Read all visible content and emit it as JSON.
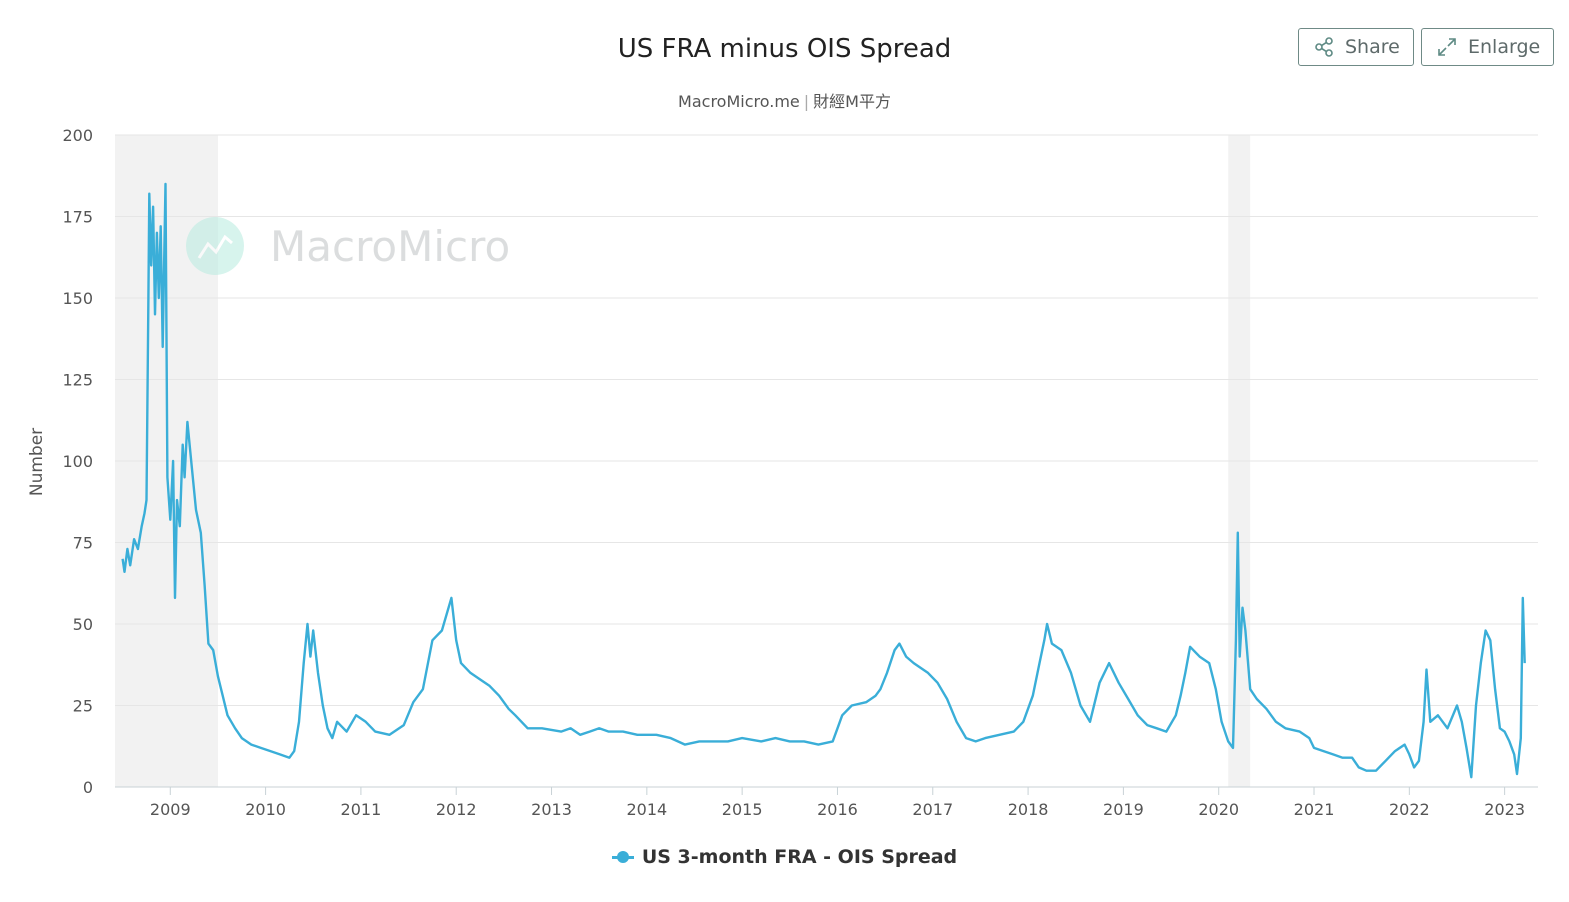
{
  "toolbar": {
    "share_label": "Share",
    "enlarge_label": "Enlarge",
    "share_icon": "share-icon",
    "enlarge_icon": "expand-icon"
  },
  "watermark": {
    "text": "MacroMicro",
    "logo_icon": "macromicro-logo-icon"
  },
  "chart_data": {
    "type": "line",
    "title": "US FRA minus OIS Spread",
    "subtitle": "MacroMicro.me | 財經M平方",
    "subtitle_source": "MacroMicro.me",
    "subtitle_brand": "財經M平方",
    "xlabel": "",
    "ylabel": "Number",
    "ylim": [
      0,
      200
    ],
    "yticks": [
      0,
      25,
      50,
      75,
      100,
      125,
      150,
      175,
      200
    ],
    "xlim": [
      2008.42,
      2023.35
    ],
    "xticks": [
      "2009",
      "2010",
      "2011",
      "2012",
      "2013",
      "2014",
      "2015",
      "2016",
      "2017",
      "2018",
      "2019",
      "2020",
      "2021",
      "2022",
      "2023"
    ],
    "grid": true,
    "legend": "bottom-center",
    "colors": {
      "series": "#3aaed8",
      "recession": "#f2f2f2",
      "grid": "#e6e6e6"
    },
    "recession_bands": [
      [
        2008.42,
        2009.5
      ],
      [
        2020.1,
        2020.33
      ]
    ],
    "series": [
      {
        "name": "US 3-month FRA - OIS Spread",
        "points": [
          [
            2008.5,
            70
          ],
          [
            2008.52,
            66
          ],
          [
            2008.55,
            73
          ],
          [
            2008.58,
            68
          ],
          [
            2008.62,
            76
          ],
          [
            2008.66,
            73
          ],
          [
            2008.7,
            80
          ],
          [
            2008.73,
            84
          ],
          [
            2008.75,
            88
          ],
          [
            2008.77,
            150
          ],
          [
            2008.78,
            182
          ],
          [
            2008.8,
            160
          ],
          [
            2008.82,
            178
          ],
          [
            2008.84,
            145
          ],
          [
            2008.86,
            170
          ],
          [
            2008.88,
            150
          ],
          [
            2008.9,
            172
          ],
          [
            2008.92,
            135
          ],
          [
            2008.95,
            185
          ],
          [
            2008.97,
            95
          ],
          [
            2009.0,
            82
          ],
          [
            2009.03,
            100
          ],
          [
            2009.05,
            58
          ],
          [
            2009.07,
            88
          ],
          [
            2009.1,
            80
          ],
          [
            2009.13,
            105
          ],
          [
            2009.15,
            95
          ],
          [
            2009.18,
            112
          ],
          [
            2009.22,
            100
          ],
          [
            2009.27,
            85
          ],
          [
            2009.32,
            78
          ],
          [
            2009.36,
            62
          ],
          [
            2009.4,
            44
          ],
          [
            2009.45,
            42
          ],
          [
            2009.5,
            34
          ],
          [
            2009.55,
            28
          ],
          [
            2009.6,
            22
          ],
          [
            2009.68,
            18
          ],
          [
            2009.75,
            15
          ],
          [
            2009.85,
            13
          ],
          [
            2009.95,
            12
          ],
          [
            2010.05,
            11
          ],
          [
            2010.15,
            10
          ],
          [
            2010.25,
            9
          ],
          [
            2010.3,
            11
          ],
          [
            2010.35,
            20
          ],
          [
            2010.4,
            38
          ],
          [
            2010.44,
            50
          ],
          [
            2010.47,
            40
          ],
          [
            2010.5,
            48
          ],
          [
            2010.55,
            35
          ],
          [
            2010.6,
            25
          ],
          [
            2010.65,
            18
          ],
          [
            2010.7,
            15
          ],
          [
            2010.75,
            20
          ],
          [
            2010.85,
            17
          ],
          [
            2010.95,
            22
          ],
          [
            2011.05,
            20
          ],
          [
            2011.15,
            17
          ],
          [
            2011.3,
            16
          ],
          [
            2011.45,
            19
          ],
          [
            2011.55,
            26
          ],
          [
            2011.65,
            30
          ],
          [
            2011.75,
            45
          ],
          [
            2011.85,
            48
          ],
          [
            2011.95,
            58
          ],
          [
            2012.0,
            45
          ],
          [
            2012.05,
            38
          ],
          [
            2012.15,
            35
          ],
          [
            2012.25,
            33
          ],
          [
            2012.35,
            31
          ],
          [
            2012.45,
            28
          ],
          [
            2012.55,
            24
          ],
          [
            2012.62,
            22
          ],
          [
            2012.75,
            18
          ],
          [
            2012.9,
            18
          ],
          [
            2013.1,
            17
          ],
          [
            2013.2,
            18
          ],
          [
            2013.3,
            16
          ],
          [
            2013.4,
            17
          ],
          [
            2013.5,
            18
          ],
          [
            2013.6,
            17
          ],
          [
            2013.75,
            17
          ],
          [
            2013.9,
            16
          ],
          [
            2014.1,
            16
          ],
          [
            2014.25,
            15
          ],
          [
            2014.4,
            13
          ],
          [
            2014.55,
            14
          ],
          [
            2014.7,
            14
          ],
          [
            2014.85,
            14
          ],
          [
            2015.0,
            15
          ],
          [
            2015.2,
            14
          ],
          [
            2015.35,
            15
          ],
          [
            2015.5,
            14
          ],
          [
            2015.65,
            14
          ],
          [
            2015.8,
            13
          ],
          [
            2015.95,
            14
          ],
          [
            2016.0,
            18
          ],
          [
            2016.05,
            22
          ],
          [
            2016.15,
            25
          ],
          [
            2016.3,
            26
          ],
          [
            2016.4,
            28
          ],
          [
            2016.45,
            30
          ],
          [
            2016.52,
            35
          ],
          [
            2016.6,
            42
          ],
          [
            2016.65,
            44
          ],
          [
            2016.72,
            40
          ],
          [
            2016.8,
            38
          ],
          [
            2016.95,
            35
          ],
          [
            2017.05,
            32
          ],
          [
            2017.15,
            27
          ],
          [
            2017.25,
            20
          ],
          [
            2017.35,
            15
          ],
          [
            2017.45,
            14
          ],
          [
            2017.55,
            15
          ],
          [
            2017.7,
            16
          ],
          [
            2017.85,
            17
          ],
          [
            2017.95,
            20
          ],
          [
            2018.05,
            28
          ],
          [
            2018.12,
            38
          ],
          [
            2018.17,
            45
          ],
          [
            2018.2,
            50
          ],
          [
            2018.25,
            44
          ],
          [
            2018.35,
            42
          ],
          [
            2018.45,
            35
          ],
          [
            2018.55,
            25
          ],
          [
            2018.65,
            20
          ],
          [
            2018.75,
            32
          ],
          [
            2018.85,
            38
          ],
          [
            2018.95,
            32
          ],
          [
            2019.05,
            27
          ],
          [
            2019.15,
            22
          ],
          [
            2019.25,
            19
          ],
          [
            2019.35,
            18
          ],
          [
            2019.45,
            17
          ],
          [
            2019.55,
            22
          ],
          [
            2019.6,
            28
          ],
          [
            2019.65,
            35
          ],
          [
            2019.7,
            43
          ],
          [
            2019.8,
            40
          ],
          [
            2019.9,
            38
          ],
          [
            2019.97,
            30
          ],
          [
            2020.03,
            20
          ],
          [
            2020.1,
            14
          ],
          [
            2020.15,
            12
          ],
          [
            2020.18,
            45
          ],
          [
            2020.2,
            78
          ],
          [
            2020.22,
            40
          ],
          [
            2020.25,
            55
          ],
          [
            2020.28,
            48
          ],
          [
            2020.33,
            30
          ],
          [
            2020.4,
            27
          ],
          [
            2020.5,
            24
          ],
          [
            2020.6,
            20
          ],
          [
            2020.7,
            18
          ],
          [
            2020.85,
            17
          ],
          [
            2020.95,
            15
          ],
          [
            2021.0,
            12
          ],
          [
            2021.1,
            11
          ],
          [
            2021.2,
            10
          ],
          [
            2021.3,
            9
          ],
          [
            2021.4,
            9
          ],
          [
            2021.47,
            6
          ],
          [
            2021.55,
            5
          ],
          [
            2021.65,
            5
          ],
          [
            2021.75,
            8
          ],
          [
            2021.85,
            11
          ],
          [
            2021.95,
            13
          ],
          [
            2022.0,
            10
          ],
          [
            2022.05,
            6
          ],
          [
            2022.1,
            8
          ],
          [
            2022.15,
            20
          ],
          [
            2022.18,
            36
          ],
          [
            2022.22,
            20
          ],
          [
            2022.3,
            22
          ],
          [
            2022.4,
            18
          ],
          [
            2022.5,
            25
          ],
          [
            2022.55,
            20
          ],
          [
            2022.6,
            12
          ],
          [
            2022.65,
            3
          ],
          [
            2022.7,
            25
          ],
          [
            2022.75,
            38
          ],
          [
            2022.8,
            48
          ],
          [
            2022.85,
            45
          ],
          [
            2022.9,
            30
          ],
          [
            2022.95,
            18
          ],
          [
            2023.0,
            17
          ],
          [
            2023.05,
            14
          ],
          [
            2023.1,
            10
          ],
          [
            2023.13,
            4
          ],
          [
            2023.17,
            15
          ],
          [
            2023.19,
            58
          ],
          [
            2023.21,
            38
          ]
        ]
      }
    ]
  }
}
